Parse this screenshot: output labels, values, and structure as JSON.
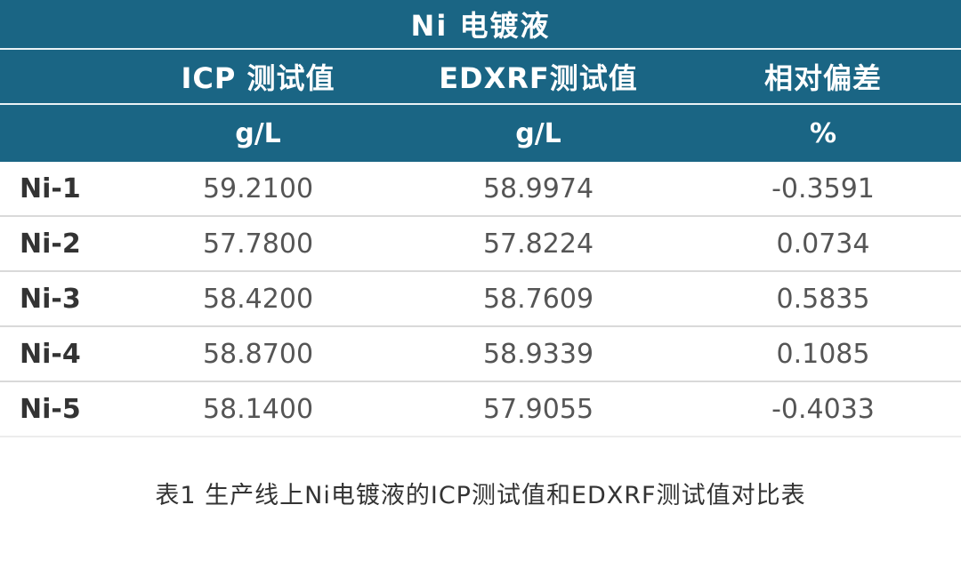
{
  "table": {
    "title": "Ni 电镀液",
    "headers": [
      "ICP 测试值",
      "EDXRF测试值",
      "相对偏差"
    ],
    "units": [
      "g/L",
      "g/L",
      "%"
    ],
    "rows": [
      {
        "label": "Ni-1",
        "icp": "59.2100",
        "edxrf": "58.9974",
        "dev": "-0.3591"
      },
      {
        "label": "Ni-2",
        "icp": "57.7800",
        "edxrf": "57.8224",
        "dev": "0.0734"
      },
      {
        "label": "Ni-3",
        "icp": "58.4200",
        "edxrf": "58.7609",
        "dev": "0.5835"
      },
      {
        "label": "Ni-4",
        "icp": "58.8700",
        "edxrf": "58.9339",
        "dev": "0.1085"
      },
      {
        "label": "Ni-5",
        "icp": "58.1400",
        "edxrf": "57.9055",
        "dev": "-0.4033"
      }
    ]
  },
  "caption": "表1 生产线上Ni电镀液的ICP测试值和EDXRF测试值对比表",
  "colors": {
    "header_bg": "#1a6584",
    "header_text": "#ffffff",
    "row_divider": "#d9d9d9"
  }
}
